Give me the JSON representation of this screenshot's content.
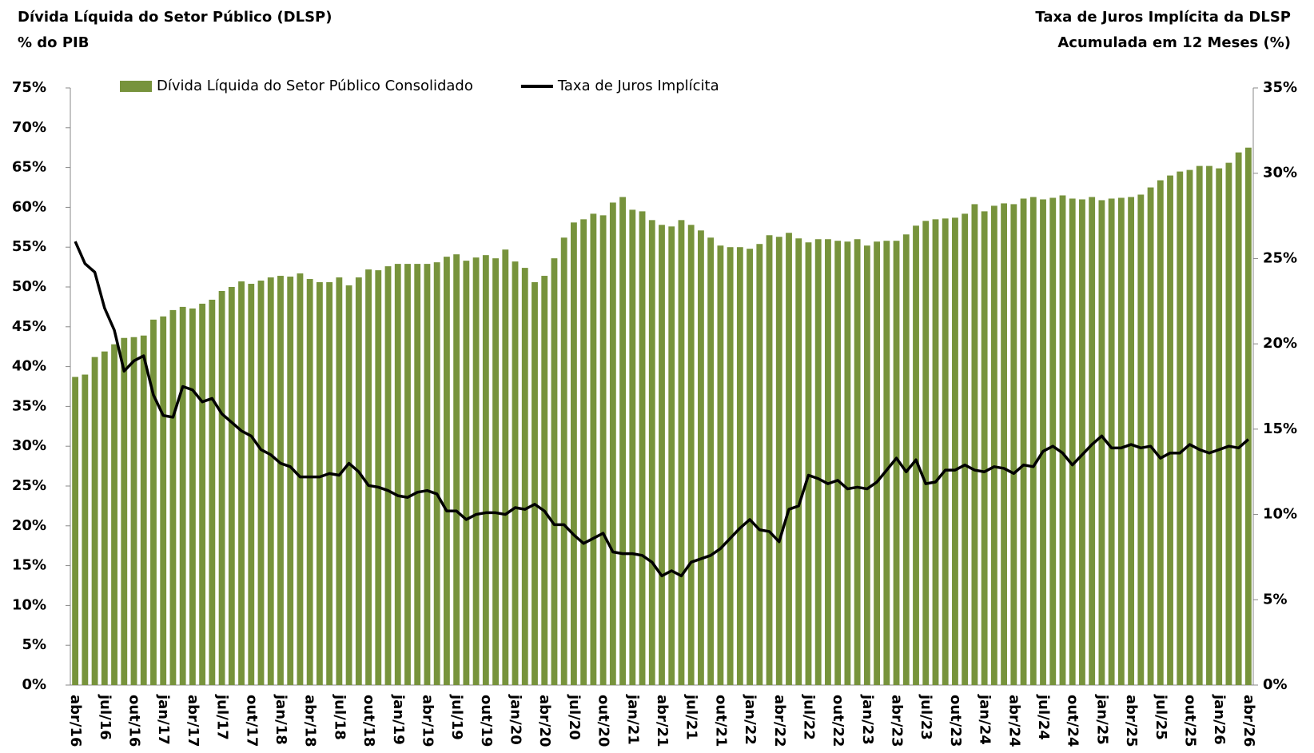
{
  "chart_data": {
    "type": "combo",
    "y_title": [
      "Dívida Líquida do Setor Público (DLSP)",
      "% do PIB"
    ],
    "y2_title": [
      "Taxa de Juros Implícita da DLSP",
      "Acumulada em 12 Meses (%)"
    ],
    "categories": [
      "abr/16",
      null,
      null,
      "jul/16",
      null,
      null,
      "out/16",
      null,
      null,
      "jan/17",
      null,
      null,
      "abr/17",
      null,
      null,
      "jul/17",
      null,
      null,
      "out/17",
      null,
      null,
      "jan/18",
      null,
      null,
      "abr/18",
      null,
      null,
      "jul/18",
      null,
      null,
      "out/18",
      null,
      null,
      "jan/19",
      null,
      null,
      "abr/19",
      null,
      null,
      "jul/19",
      null,
      null,
      "out/19",
      null,
      null,
      "jan/20",
      null,
      null,
      "abr/20",
      null,
      null,
      "jul/20",
      null,
      null,
      "out/20",
      null,
      null,
      "jan/21",
      null,
      null,
      "abr/21",
      null,
      null,
      "jul/21",
      null,
      null,
      "out/21",
      null,
      null,
      "jan/22",
      null,
      null,
      "abr/22",
      null,
      null,
      "jul/22",
      null,
      null,
      "out/22",
      null,
      null,
      "jan/23",
      null,
      null,
      "abr/23",
      null,
      null,
      "jul/23",
      null,
      null,
      "out/23",
      null,
      null,
      "jan/24",
      null,
      null,
      "abr/24",
      null,
      null,
      "jul/24",
      null,
      null,
      "out/24",
      null,
      null,
      "jan/25",
      null,
      null,
      "abr/25",
      null,
      null,
      "jul/25",
      null,
      null,
      "out/25",
      null,
      null,
      "jan/26",
      null,
      null,
      "abr/26"
    ],
    "series": [
      {
        "name": "Dívida Líquida do Setor Público Consolidado",
        "type": "bar",
        "color": "#77933c",
        "axis": "y",
        "values": [
          38.7,
          39.0,
          41.2,
          41.9,
          42.8,
          43.6,
          43.7,
          43.9,
          45.9,
          46.3,
          47.1,
          47.5,
          47.3,
          47.9,
          48.4,
          49.5,
          50.0,
          50.7,
          50.4,
          50.8,
          51.2,
          51.4,
          51.3,
          51.7,
          51.0,
          50.6,
          50.6,
          51.2,
          50.2,
          51.2,
          52.2,
          52.1,
          52.6,
          52.9,
          52.9,
          52.9,
          52.9,
          53.1,
          53.8,
          54.1,
          53.3,
          53.7,
          54.0,
          53.6,
          54.7,
          53.2,
          52.4,
          50.6,
          51.4,
          53.6,
          56.2,
          58.1,
          58.5,
          59.2,
          59.0,
          60.6,
          61.3,
          59.7,
          59.5,
          58.4,
          57.8,
          57.6,
          58.4,
          57.8,
          57.1,
          56.2,
          55.2,
          55.0,
          55.0,
          54.8,
          55.4,
          56.5,
          56.3,
          56.8,
          56.1,
          55.6,
          56.0,
          56.0,
          55.8,
          55.7,
          56.0,
          55.2,
          55.7,
          55.8,
          55.8,
          56.6,
          57.7,
          58.3,
          58.5,
          58.6,
          58.7,
          59.2,
          60.4,
          59.5,
          60.2,
          60.5,
          60.4,
          61.1,
          61.3,
          61.0,
          61.2,
          61.5,
          61.1,
          61.0,
          61.3,
          60.9,
          61.1,
          61.2,
          61.3,
          61.6,
          62.5,
          63.4,
          64.0,
          64.5,
          64.7,
          65.2,
          65.2,
          64.9,
          65.6,
          66.9,
          67.5
        ]
      },
      {
        "name": "Taxa de Juros Implícita",
        "type": "line",
        "color": "#000000",
        "axis": "y2",
        "values": [
          26.0,
          24.7,
          24.2,
          22.1,
          20.8,
          18.4,
          19.0,
          19.3,
          17.0,
          15.8,
          15.7,
          17.5,
          17.3,
          16.6,
          16.8,
          15.9,
          15.4,
          14.9,
          14.6,
          13.8,
          13.5,
          13.0,
          12.8,
          12.2,
          12.2,
          12.2,
          12.4,
          12.3,
          13.0,
          12.5,
          11.7,
          11.6,
          11.4,
          11.1,
          11.0,
          11.3,
          11.4,
          11.2,
          10.2,
          10.2,
          9.7,
          10.0,
          10.1,
          10.1,
          10.0,
          10.4,
          10.3,
          10.6,
          10.2,
          9.4,
          9.4,
          8.8,
          8.3,
          8.6,
          8.9,
          7.8,
          7.7,
          7.7,
          7.6,
          7.2,
          6.4,
          6.7,
          6.4,
          7.2,
          7.4,
          7.6,
          8.0,
          8.6,
          9.2,
          9.7,
          9.1,
          9.0,
          8.4,
          10.3,
          10.5,
          12.3,
          12.1,
          11.8,
          12.0,
          11.5,
          11.6,
          11.5,
          11.9,
          12.6,
          13.3,
          12.5,
          13.2,
          11.8,
          11.9,
          12.6,
          12.6,
          12.9,
          12.6,
          12.5,
          12.8,
          12.7,
          12.4,
          12.9,
          12.8,
          13.7,
          14.0,
          13.6,
          12.9,
          13.5,
          14.1,
          14.6,
          13.9,
          13.9,
          14.1,
          13.9,
          14.0,
          13.3,
          13.6,
          13.6,
          14.1,
          13.8,
          13.6,
          13.8,
          14.0,
          13.9,
          14.4
        ]
      }
    ],
    "ylim": [
      0,
      75
    ],
    "yticks": [
      {
        "value": 0,
        "label": "0%"
      },
      {
        "value": 5,
        "label": "5%"
      },
      {
        "value": 10,
        "label": "10%"
      },
      {
        "value": 15,
        "label": "15%"
      },
      {
        "value": 20,
        "label": "20%"
      },
      {
        "value": 25,
        "label": "25%"
      },
      {
        "value": 30,
        "label": "30%"
      },
      {
        "value": 35,
        "label": "35%"
      },
      {
        "value": 40,
        "label": "40%"
      },
      {
        "value": 45,
        "label": "45%"
      },
      {
        "value": 50,
        "label": "50%"
      },
      {
        "value": 55,
        "label": "55%"
      },
      {
        "value": 60,
        "label": "60%"
      },
      {
        "value": 65,
        "label": "65%"
      },
      {
        "value": 70,
        "label": "70%"
      },
      {
        "value": 75,
        "label": "75%"
      }
    ],
    "y2lim": [
      0,
      35
    ],
    "y2ticks": [
      {
        "value": 0,
        "label": "0%"
      },
      {
        "value": 5,
        "label": "5%"
      },
      {
        "value": 10,
        "label": "10%"
      },
      {
        "value": 15,
        "label": "15%"
      },
      {
        "value": 20,
        "label": "20%"
      },
      {
        "value": 25,
        "label": "25%"
      },
      {
        "value": 30,
        "label": "30%"
      },
      {
        "value": 35,
        "label": "35%"
      }
    ]
  }
}
